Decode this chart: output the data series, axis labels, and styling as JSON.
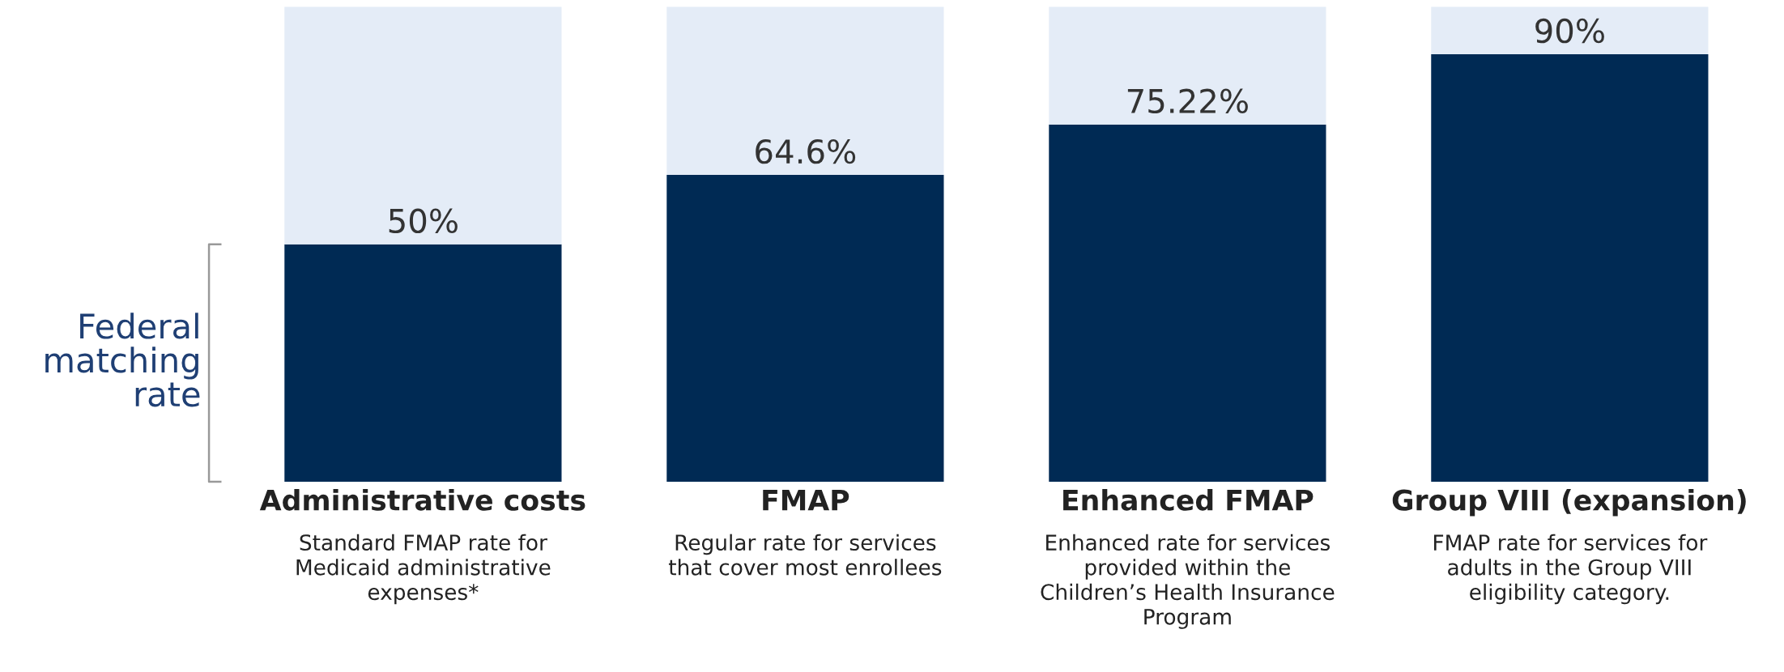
{
  "chart_data": {
    "type": "bar",
    "stacked": true,
    "ylabel": "Federal matching rate",
    "categories": [
      "Administrative costs\nStandard FMAP rate for\nMedicaid administrative\nexpenses*",
      "FMAP\nRegular rate for services\nthat cover most enrollees",
      "Enhanced FMAP\nEnhanced rate for services\nprovided within the\nChildren’s Health Insurance\nProgram",
      "Group VIII (expansion)\nFMAP rate for services for\nadults in the Group VIII\neligibility category."
    ],
    "series": [
      {
        "color": "#002a54",
        "values": [
          50,
          64.6,
          75.22,
          90
        ],
        "value_labels": [
          "50%",
          "64.6%",
          "75.22%",
          "90%"
        ]
      },
      {
        "color": "#e4ecf7",
        "values": [
          50,
          35.4,
          24.78,
          10
        ],
        "value_labels": [
          null,
          null,
          null,
          null
        ]
      }
    ],
    "ylim": [
      0,
      100
    ],
    "tick_labels": "x",
    "grid": false,
    "legend": false
  }
}
